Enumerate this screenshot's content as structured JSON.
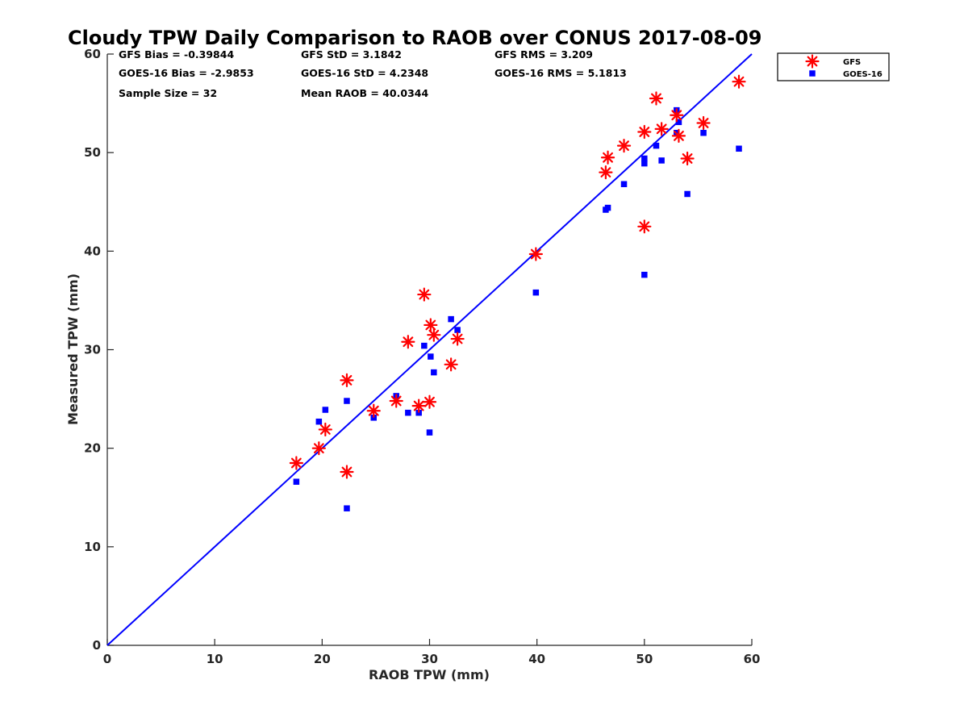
{
  "chart_data": {
    "type": "scatter",
    "title": "Cloudy TPW Daily Comparison to RAOB over CONUS 2017-08-09",
    "xlabel": "RAOB TPW (mm)",
    "ylabel": "Measured TPW (mm)",
    "xlim": [
      0,
      60
    ],
    "ylim": [
      0,
      60
    ],
    "xticks": [
      "0",
      "10",
      "20",
      "30",
      "40",
      "50",
      "60"
    ],
    "yticks": [
      "0",
      "10",
      "20",
      "30",
      "40",
      "50",
      "60"
    ],
    "grid": false,
    "legend_position": "top-right outside",
    "reference_line": {
      "x": [
        0,
        60
      ],
      "y": [
        0,
        60
      ],
      "color": "#0000ff"
    },
    "stats": [
      [
        "GFS Bias = -0.39844",
        "GFS StD = 3.1842",
        "GFS RMS = 3.209"
      ],
      [
        "GOES-16 Bias = -2.9853",
        "GOES-16 StD = 4.2348",
        "GOES-16 RMS = 5.1813"
      ],
      [
        "Sample Size = 32",
        "Mean RAOB = 40.0344",
        ""
      ]
    ],
    "series": [
      {
        "name": "GFS",
        "marker": "asterisk",
        "color": "#ff0000",
        "points": [
          [
            17.6,
            18.5
          ],
          [
            19.7,
            20.0
          ],
          [
            20.3,
            21.9
          ],
          [
            22.3,
            26.9
          ],
          [
            22.3,
            17.6
          ],
          [
            24.8,
            23.8
          ],
          [
            26.9,
            24.8
          ],
          [
            28.0,
            30.8
          ],
          [
            29.0,
            24.3
          ],
          [
            29.5,
            35.6
          ],
          [
            30.0,
            24.7
          ],
          [
            30.1,
            32.5
          ],
          [
            30.4,
            31.5
          ],
          [
            32.0,
            28.5
          ],
          [
            32.6,
            31.1
          ],
          [
            39.9,
            39.7
          ],
          [
            46.4,
            48.0
          ],
          [
            46.6,
            49.5
          ],
          [
            48.1,
            50.7
          ],
          [
            50.0,
            52.1
          ],
          [
            50.0,
            42.5
          ],
          [
            51.1,
            55.5
          ],
          [
            51.6,
            52.4
          ],
          [
            53.0,
            53.8
          ],
          [
            53.2,
            51.7
          ],
          [
            54.0,
            49.4
          ],
          [
            55.5,
            53.0
          ],
          [
            58.8,
            57.2
          ]
        ]
      },
      {
        "name": "GOES-16",
        "marker": "square",
        "color": "#0000ff",
        "points": [
          [
            17.6,
            16.6
          ],
          [
            19.7,
            22.7
          ],
          [
            20.3,
            23.9
          ],
          [
            22.3,
            24.8
          ],
          [
            22.3,
            13.9
          ],
          [
            24.8,
            23.1
          ],
          [
            26.9,
            25.3
          ],
          [
            28.0,
            23.6
          ],
          [
            29.0,
            23.6
          ],
          [
            29.5,
            30.4
          ],
          [
            30.0,
            21.6
          ],
          [
            30.1,
            29.3
          ],
          [
            30.4,
            27.7
          ],
          [
            32.0,
            33.1
          ],
          [
            32.6,
            32.0
          ],
          [
            39.9,
            35.8
          ],
          [
            46.4,
            44.2
          ],
          [
            46.6,
            44.4
          ],
          [
            48.1,
            46.8
          ],
          [
            50.0,
            49.4
          ],
          [
            50.0,
            48.9
          ],
          [
            50.0,
            37.6
          ],
          [
            51.1,
            50.7
          ],
          [
            51.6,
            49.2
          ],
          [
            53.0,
            54.3
          ],
          [
            53.0,
            52.0
          ],
          [
            53.2,
            53.1
          ],
          [
            54.0,
            45.8
          ],
          [
            55.5,
            52.0
          ],
          [
            58.8,
            50.4
          ]
        ]
      }
    ]
  }
}
